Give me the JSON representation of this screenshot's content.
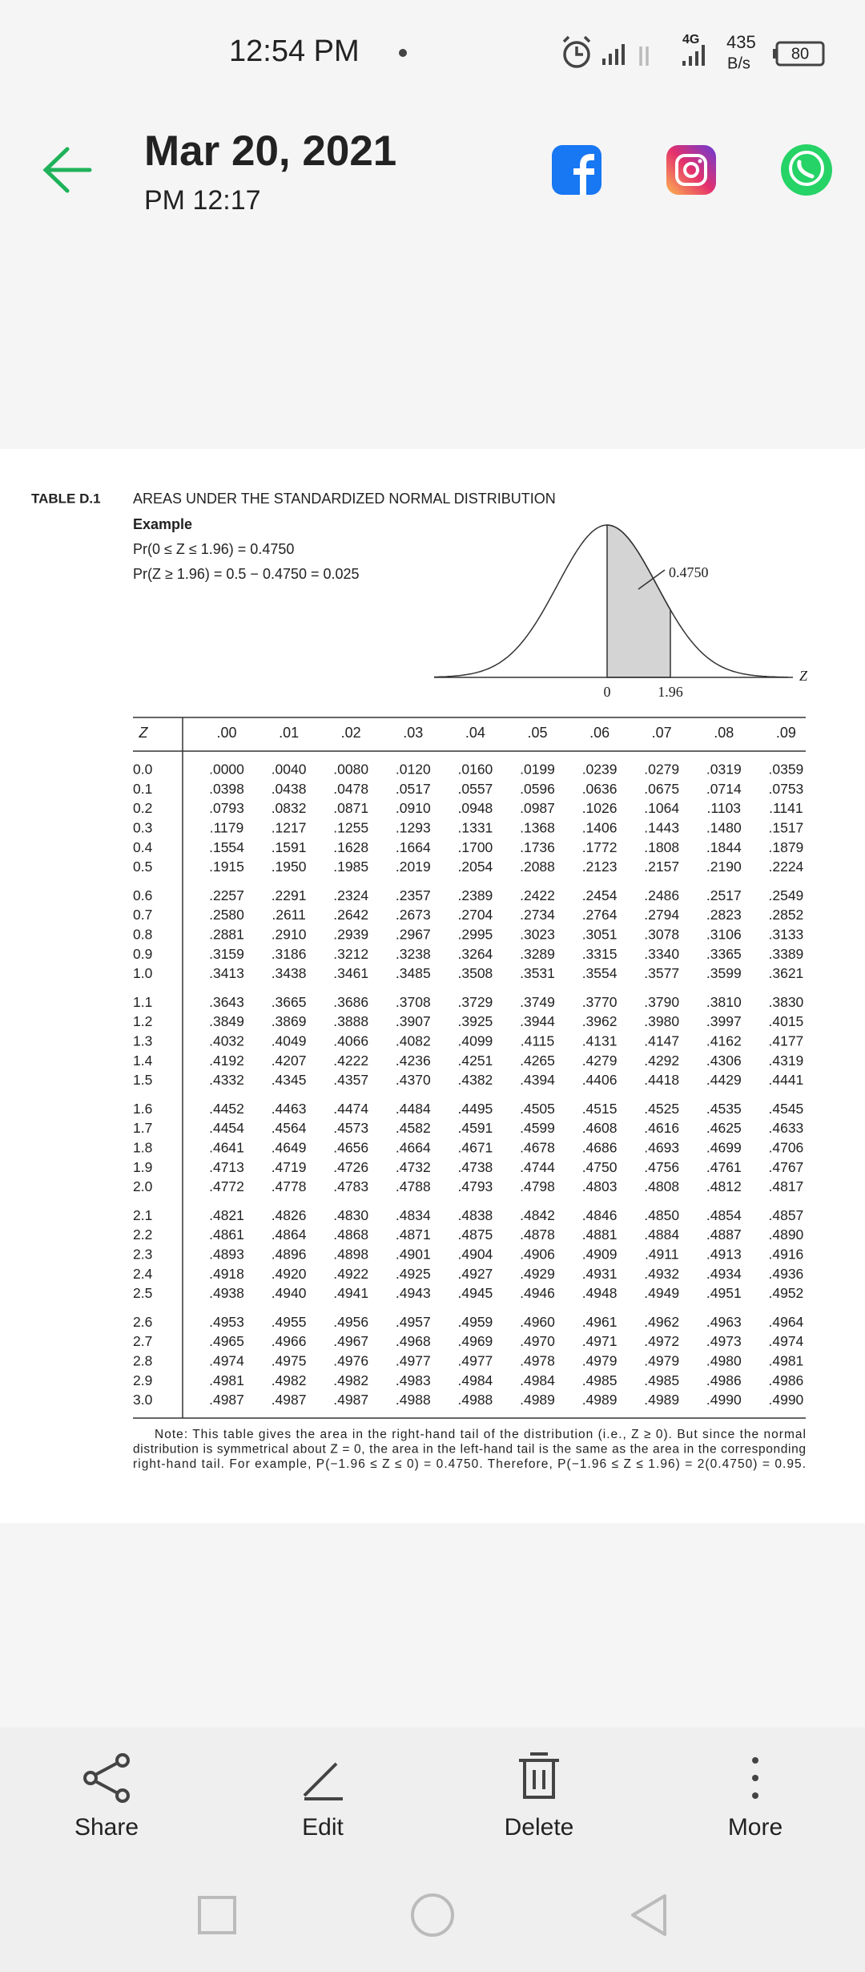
{
  "status_bar": {
    "time": "12:54 PM",
    "network": "4G",
    "speed": "435",
    "speed_unit": "B/s",
    "battery": "80"
  },
  "header": {
    "title": "Mar 20, 2021",
    "subtitle": "PM 12:17"
  },
  "table": {
    "label": "TABLE D.1",
    "title": "AREAS UNDER THE STANDARDIZED NORMAL DISTRIBUTION",
    "example_label": "Example",
    "example_lines": [
      "Pr(0 ≤ Z ≤ 1.96) = 0.4750",
      "Pr(Z ≥ 1.96) = 0.5 − 0.4750 = 0.025"
    ],
    "figure": {
      "area_label": "0.4750",
      "zero_label": "0",
      "z_value_label": "1.96",
      "axis_label": "Z"
    },
    "columns": [
      "Z",
      ".00",
      ".01",
      ".02",
      ".03",
      ".04",
      ".05",
      ".06",
      ".07",
      ".08",
      ".09"
    ],
    "rows": [
      [
        "0.0",
        ".0000",
        ".0040",
        ".0080",
        ".0120",
        ".0160",
        ".0199",
        ".0239",
        ".0279",
        ".0319",
        ".0359"
      ],
      [
        "0.1",
        ".0398",
        ".0438",
        ".0478",
        ".0517",
        ".0557",
        ".0596",
        ".0636",
        ".0675",
        ".0714",
        ".0753"
      ],
      [
        "0.2",
        ".0793",
        ".0832",
        ".0871",
        ".0910",
        ".0948",
        ".0987",
        ".1026",
        ".1064",
        ".1103",
        ".1141"
      ],
      [
        "0.3",
        ".1179",
        ".1217",
        ".1255",
        ".1293",
        ".1331",
        ".1368",
        ".1406",
        ".1443",
        ".1480",
        ".1517"
      ],
      [
        "0.4",
        ".1554",
        ".1591",
        ".1628",
        ".1664",
        ".1700",
        ".1736",
        ".1772",
        ".1808",
        ".1844",
        ".1879"
      ],
      [
        "0.5",
        ".1915",
        ".1950",
        ".1985",
        ".2019",
        ".2054",
        ".2088",
        ".2123",
        ".2157",
        ".2190",
        ".2224"
      ],
      [
        "0.6",
        ".2257",
        ".2291",
        ".2324",
        ".2357",
        ".2389",
        ".2422",
        ".2454",
        ".2486",
        ".2517",
        ".2549"
      ],
      [
        "0.7",
        ".2580",
        ".2611",
        ".2642",
        ".2673",
        ".2704",
        ".2734",
        ".2764",
        ".2794",
        ".2823",
        ".2852"
      ],
      [
        "0.8",
        ".2881",
        ".2910",
        ".2939",
        ".2967",
        ".2995",
        ".3023",
        ".3051",
        ".3078",
        ".3106",
        ".3133"
      ],
      [
        "0.9",
        ".3159",
        ".3186",
        ".3212",
        ".3238",
        ".3264",
        ".3289",
        ".3315",
        ".3340",
        ".3365",
        ".3389"
      ],
      [
        "1.0",
        ".3413",
        ".3438",
        ".3461",
        ".3485",
        ".3508",
        ".3531",
        ".3554",
        ".3577",
        ".3599",
        ".3621"
      ],
      [
        "1.1",
        ".3643",
        ".3665",
        ".3686",
        ".3708",
        ".3729",
        ".3749",
        ".3770",
        ".3790",
        ".3810",
        ".3830"
      ],
      [
        "1.2",
        ".3849",
        ".3869",
        ".3888",
        ".3907",
        ".3925",
        ".3944",
        ".3962",
        ".3980",
        ".3997",
        ".4015"
      ],
      [
        "1.3",
        ".4032",
        ".4049",
        ".4066",
        ".4082",
        ".4099",
        ".4115",
        ".4131",
        ".4147",
        ".4162",
        ".4177"
      ],
      [
        "1.4",
        ".4192",
        ".4207",
        ".4222",
        ".4236",
        ".4251",
        ".4265",
        ".4279",
        ".4292",
        ".4306",
        ".4319"
      ],
      [
        "1.5",
        ".4332",
        ".4345",
        ".4357",
        ".4370",
        ".4382",
        ".4394",
        ".4406",
        ".4418",
        ".4429",
        ".4441"
      ],
      [
        "1.6",
        ".4452",
        ".4463",
        ".4474",
        ".4484",
        ".4495",
        ".4505",
        ".4515",
        ".4525",
        ".4535",
        ".4545"
      ],
      [
        "1.7",
        ".4454",
        ".4564",
        ".4573",
        ".4582",
        ".4591",
        ".4599",
        ".4608",
        ".4616",
        ".4625",
        ".4633"
      ],
      [
        "1.8",
        ".4641",
        ".4649",
        ".4656",
        ".4664",
        ".4671",
        ".4678",
        ".4686",
        ".4693",
        ".4699",
        ".4706"
      ],
      [
        "1.9",
        ".4713",
        ".4719",
        ".4726",
        ".4732",
        ".4738",
        ".4744",
        ".4750",
        ".4756",
        ".4761",
        ".4767"
      ],
      [
        "2.0",
        ".4772",
        ".4778",
        ".4783",
        ".4788",
        ".4793",
        ".4798",
        ".4803",
        ".4808",
        ".4812",
        ".4817"
      ],
      [
        "2.1",
        ".4821",
        ".4826",
        ".4830",
        ".4834",
        ".4838",
        ".4842",
        ".4846",
        ".4850",
        ".4854",
        ".4857"
      ],
      [
        "2.2",
        ".4861",
        ".4864",
        ".4868",
        ".4871",
        ".4875",
        ".4878",
        ".4881",
        ".4884",
        ".4887",
        ".4890"
      ],
      [
        "2.3",
        ".4893",
        ".4896",
        ".4898",
        ".4901",
        ".4904",
        ".4906",
        ".4909",
        ".4911",
        ".4913",
        ".4916"
      ],
      [
        "2.4",
        ".4918",
        ".4920",
        ".4922",
        ".4925",
        ".4927",
        ".4929",
        ".4931",
        ".4932",
        ".4934",
        ".4936"
      ],
      [
        "2.5",
        ".4938",
        ".4940",
        ".4941",
        ".4943",
        ".4945",
        ".4946",
        ".4948",
        ".4949",
        ".4951",
        ".4952"
      ],
      [
        "2.6",
        ".4953",
        ".4955",
        ".4956",
        ".4957",
        ".4959",
        ".4960",
        ".4961",
        ".4962",
        ".4963",
        ".4964"
      ],
      [
        "2.7",
        ".4965",
        ".4966",
        ".4967",
        ".4968",
        ".4969",
        ".4970",
        ".4971",
        ".4972",
        ".4973",
        ".4974"
      ],
      [
        "2.8",
        ".4974",
        ".4975",
        ".4976",
        ".4977",
        ".4977",
        ".4978",
        ".4979",
        ".4979",
        ".4980",
        ".4981"
      ],
      [
        "2.9",
        ".4981",
        ".4982",
        ".4982",
        ".4983",
        ".4984",
        ".4984",
        ".4985",
        ".4985",
        ".4986",
        ".4986"
      ],
      [
        "3.0",
        ".4987",
        ".4987",
        ".4987",
        ".4988",
        ".4988",
        ".4989",
        ".4989",
        ".4989",
        ".4990",
        ".4990"
      ]
    ],
    "note_lines": [
      "Note: This table gives the area in the right-hand tail of the distribution (i.e., Z ≥ 0). But since the normal",
      "distribution is symmetrical about Z = 0, the area in the left-hand tail is the same as the area in the corresponding",
      "right-hand tail. For example, P(−1.96 ≤ Z ≤ 0) = 0.4750. Therefore, P(−1.96 ≤ Z ≤ 1.96) = 2(0.4750) = 0.95."
    ]
  },
  "actions": [
    "Share",
    "Edit",
    "Delete",
    "More"
  ]
}
